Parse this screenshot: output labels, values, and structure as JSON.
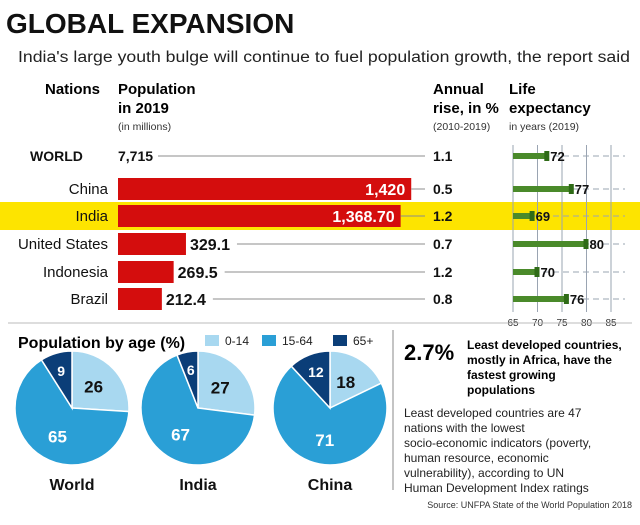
{
  "title": "GLOBAL EXPANSION",
  "subtitle": "India's large youth bulge will continue to fuel population growth, the report said",
  "headers": {
    "nations": "Nations",
    "population_line1": "Population",
    "population_line2": "in 2019",
    "population_unit": "(in millions)",
    "rise_line1": "Annual",
    "rise_line2": "rise, in %",
    "rise_period": "(2010-2019)",
    "life_line1": "Life",
    "life_line2": "expectancy",
    "life_unit": "in years (2019)"
  },
  "colors": {
    "bar": "#d40d0d",
    "highlight": "#fde400",
    "life_bar": "#4a8a2a",
    "pie_young": "#a8d8f0",
    "pie_working": "#2a9fd6",
    "pie_old": "#0b3e78"
  },
  "pie_legend": [
    {
      "label": "0-14",
      "color": "#a8d8f0"
    },
    {
      "label": "15-64",
      "color": "#2a9fd6"
    },
    {
      "label": "65+",
      "color": "#0b3e78"
    }
  ],
  "stat_big": "2.7%",
  "stat_text": "Least developed countries, mostly in Africa, have the fastest growing populations",
  "note": "Least developed countries are 47 nations with the lowest socio-economic indicators (poverty, human resource, economic vulnerability), according to UN Human Development Index ratings",
  "source": "Source: UNFPA State of the World Population 2018",
  "chart_data": [
    {
      "type": "bar",
      "title": "Population in 2019",
      "ylabel": "(in millions)",
      "categories": [
        "WORLD",
        "China",
        "India",
        "United States",
        "Indonesia",
        "Brazil"
      ],
      "values": [
        7715,
        1420,
        1368.7,
        329.1,
        269.5,
        212.4
      ],
      "value_labels": [
        "7,715",
        "1,420",
        "1,368.70",
        "329.1",
        "269.5",
        "212.4"
      ],
      "highlight": "India"
    },
    {
      "type": "table",
      "title": "Annual rise, in % (2010-2019)",
      "categories": [
        "WORLD",
        "China",
        "India",
        "United States",
        "Indonesia",
        "Brazil"
      ],
      "values": [
        "1.1",
        "0.5",
        "1.2",
        "0.7",
        "1.2",
        "0.8"
      ]
    },
    {
      "type": "bar",
      "title": "Life expectancy in years (2019)",
      "categories": [
        "WORLD",
        "China",
        "India",
        "United States",
        "Indonesia",
        "Brazil"
      ],
      "values": [
        72,
        77,
        69,
        80,
        70,
        76
      ],
      "xlim": [
        65,
        85
      ],
      "ticks": [
        "65",
        "70",
        "75",
        "80",
        "85"
      ]
    },
    {
      "type": "pie",
      "title": "Population by age (%)",
      "legend": [
        "0-14",
        "15-64",
        "65+"
      ],
      "series": [
        {
          "name": "World",
          "values": [
            26,
            65,
            9
          ]
        },
        {
          "name": "India",
          "values": [
            27,
            67,
            6
          ]
        },
        {
          "name": "China",
          "values": [
            18,
            71,
            12
          ]
        }
      ]
    }
  ]
}
